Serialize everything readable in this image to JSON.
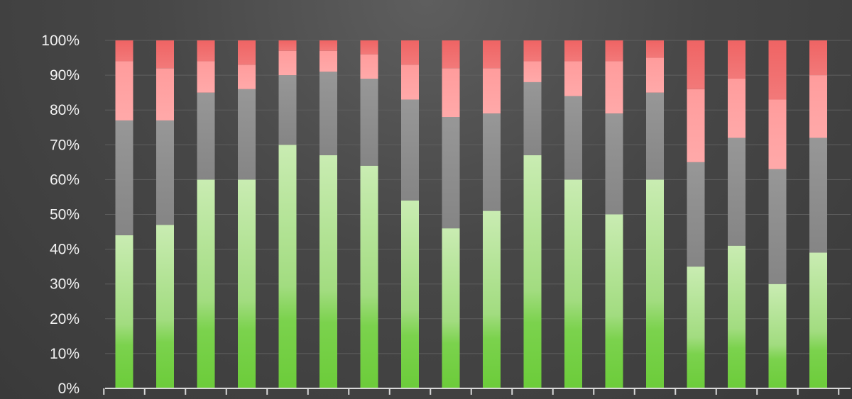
{
  "chart_data": {
    "type": "bar",
    "stacked": true,
    "normalized": true,
    "ylim": [
      0,
      100
    ],
    "y_tick_labels": [
      "0%",
      "10%",
      "20%",
      "30%",
      "40%",
      "50%",
      "60%",
      "70%",
      "80%",
      "90%",
      "100%"
    ],
    "gridlines": true,
    "legend": "none",
    "bar_count": 18,
    "series_colors": [
      "#6fcf3f",
      "#8c8c8c",
      "#ff9a9a",
      "#f06a6a"
    ],
    "series": [
      {
        "values": [
          44,
          47,
          60,
          60,
          70,
          67,
          64,
          54,
          46,
          51,
          67,
          60,
          50,
          60,
          35,
          41,
          30,
          39
        ]
      },
      {
        "values": [
          33,
          30,
          25,
          26,
          20,
          24,
          25,
          29,
          32,
          28,
          21,
          24,
          29,
          25,
          30,
          31,
          33,
          33
        ]
      },
      {
        "values": [
          17,
          15,
          9,
          7,
          7,
          6,
          7,
          10,
          14,
          13,
          6,
          10,
          15,
          10,
          21,
          17,
          20,
          18
        ]
      },
      {
        "values": [
          6,
          8,
          6,
          7,
          3,
          3,
          4,
          7,
          8,
          8,
          6,
          6,
          6,
          5,
          14,
          11,
          17,
          10
        ]
      }
    ]
  }
}
